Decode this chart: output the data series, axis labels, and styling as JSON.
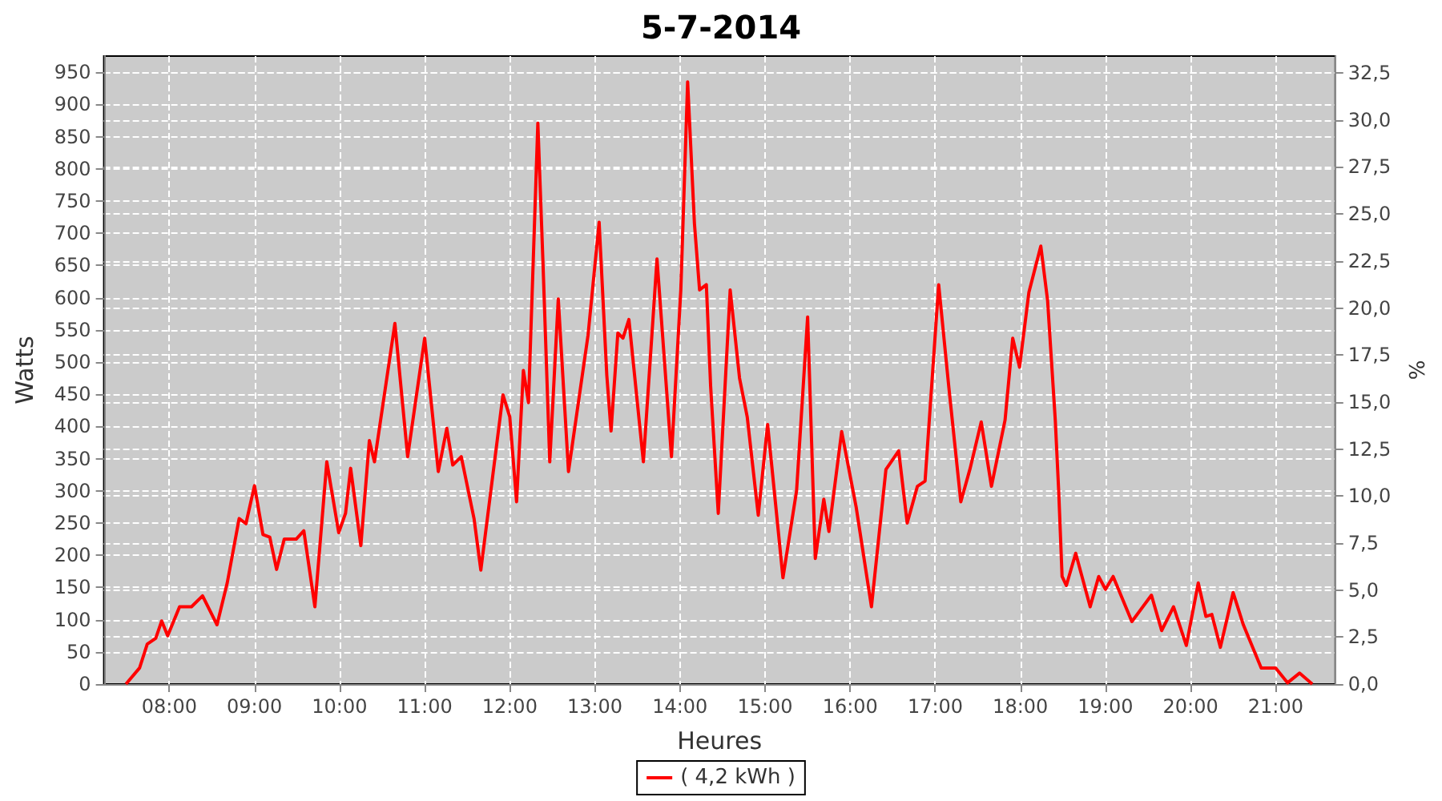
{
  "chart_data": {
    "type": "line",
    "title": "5-7-2014",
    "xlabel": "Heures",
    "ylabel": "Watts",
    "y2label": "%",
    "series": [
      {
        "name": "( 4,2 kWh )",
        "color": "#ff0000",
        "x": [
          7.49,
          7.65,
          7.74,
          7.84,
          7.91,
          7.98,
          8.12,
          8.26,
          8.39,
          8.56,
          8.68,
          8.82,
          8.9,
          9.0,
          9.1,
          9.18,
          9.26,
          9.35,
          9.49,
          9.58,
          9.71,
          9.85,
          9.99,
          10.07,
          10.13,
          10.25,
          10.35,
          10.41,
          10.65,
          10.8,
          11.0,
          11.16,
          11.26,
          11.33,
          11.43,
          11.58,
          11.66,
          11.92,
          12.0,
          12.08,
          12.16,
          12.22,
          12.33,
          12.39,
          12.47,
          12.57,
          12.69,
          12.92,
          13.05,
          13.14,
          13.19,
          13.27,
          13.33,
          13.4,
          13.57,
          13.73,
          13.9,
          14.01,
          14.09,
          14.17,
          14.23,
          14.31,
          14.36,
          14.45,
          14.59,
          14.7,
          14.79,
          14.92,
          15.03,
          15.21,
          15.37,
          15.5,
          15.59,
          15.69,
          15.75,
          15.9,
          16.07,
          16.25,
          16.42,
          16.57,
          16.67,
          16.79,
          16.88,
          17.04,
          17.16,
          17.3,
          17.41,
          17.54,
          17.66,
          17.82,
          17.91,
          17.99,
          18.1,
          18.24,
          18.32,
          18.41,
          18.45,
          18.49,
          18.54,
          18.65,
          18.82,
          18.92,
          19.0,
          19.09,
          19.31,
          19.54,
          19.66,
          19.8,
          19.95,
          20.09,
          20.18,
          20.25,
          20.35,
          20.5,
          20.62,
          20.83,
          21.0,
          21.14,
          21.28,
          21.43
        ],
        "values": [
          0,
          25,
          62,
          71,
          98,
          75,
          120,
          120,
          137,
          92,
          157,
          257,
          249,
          308,
          232,
          228,
          178,
          225,
          225,
          238,
          120,
          345,
          235,
          265,
          335,
          215,
          378,
          345,
          560,
          353,
          537,
          330,
          397,
          340,
          353,
          257,
          177,
          449,
          415,
          283,
          487,
          437,
          871,
          655,
          345,
          598,
          330,
          542,
          717,
          480,
          393,
          545,
          537,
          566,
          345,
          660,
          353,
          612,
          935,
          715,
          612,
          620,
          463,
          265,
          612,
          475,
          415,
          262,
          403,
          165,
          300,
          570,
          195,
          287,
          237,
          392,
          275,
          120,
          333,
          362,
          250,
          307,
          315,
          620,
          460,
          283,
          335,
          407,
          307,
          410,
          537,
          492,
          608,
          680,
          595,
          410,
          300,
          167,
          153,
          203,
          120,
          167,
          147,
          167,
          97,
          138,
          83,
          120,
          60,
          157,
          105,
          108,
          57,
          142,
          92,
          25,
          25,
          2,
          17,
          0
        ]
      }
    ],
    "xlim": [
      7.23,
      21.7
    ],
    "xticks": [
      {
        "value": 8,
        "label": "08:00"
      },
      {
        "value": 9,
        "label": "09:00"
      },
      {
        "value": 10,
        "label": "10:00"
      },
      {
        "value": 11,
        "label": "11:00"
      },
      {
        "value": 12,
        "label": "12:00"
      },
      {
        "value": 13,
        "label": "13:00"
      },
      {
        "value": 14,
        "label": "14:00"
      },
      {
        "value": 15,
        "label": "15:00"
      },
      {
        "value": 16,
        "label": "16:00"
      },
      {
        "value": 17,
        "label": "17:00"
      },
      {
        "value": 18,
        "label": "18:00"
      },
      {
        "value": 19,
        "label": "19:00"
      },
      {
        "value": 20,
        "label": "20:00"
      },
      {
        "value": 21,
        "label": "21:00"
      }
    ],
    "ylim": [
      0,
      975
    ],
    "yticks": [
      0,
      50,
      100,
      150,
      200,
      250,
      300,
      350,
      400,
      450,
      500,
      550,
      600,
      650,
      700,
      750,
      800,
      850,
      900,
      950
    ],
    "y2lim": [
      0,
      33.4
    ],
    "y2ticks": [
      {
        "value": 0,
        "label": "0,0"
      },
      {
        "value": 2.5,
        "label": "2,5"
      },
      {
        "value": 5,
        "label": "5,0"
      },
      {
        "value": 7.5,
        "label": "7,5"
      },
      {
        "value": 10,
        "label": "10,0"
      },
      {
        "value": 12.5,
        "label": "12,5"
      },
      {
        "value": 15,
        "label": "15,0"
      },
      {
        "value": 17.5,
        "label": "17,5"
      },
      {
        "value": 20,
        "label": "20,0"
      },
      {
        "value": 22.5,
        "label": "22,5"
      },
      {
        "value": 25,
        "label": "25,0"
      },
      {
        "value": 27.5,
        "label": "27,5"
      },
      {
        "value": 30,
        "label": "30,0"
      },
      {
        "value": 32.5,
        "label": "32,5"
      }
    ],
    "grid": true,
    "legend": "bottom",
    "marker": "none",
    "line_style": "solid"
  }
}
